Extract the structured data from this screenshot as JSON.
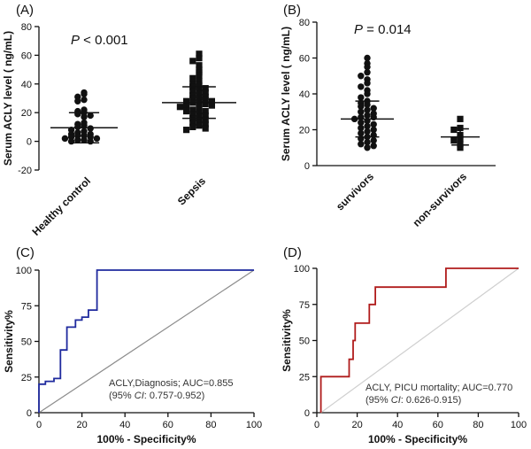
{
  "colors": {
    "axis": "#111111",
    "roc_a": "#1f2a9e",
    "roc_b": "#b01c1c",
    "diag_a": "#8c8c8c",
    "diag_b": "#cfcfcf"
  },
  "chart_data": [
    {
      "panel_label": "(A)",
      "type": "scatter",
      "subtype": "dot-plot",
      "ylabel": "Serum ACLY level ( ng/mL)",
      "ylim": [
        -20,
        80
      ],
      "yticks": [
        "-20",
        "0",
        "20",
        "40",
        "60",
        "80"
      ],
      "categories": [
        "Healthy control",
        "Sepsis"
      ],
      "annotation": {
        "p_symbol": "P",
        "p_text": " < 0.001"
      },
      "series": [
        {
          "name": "Healthy control",
          "marker": "circle",
          "mean": 9.5,
          "sd": 10.5,
          "values": [
            34,
            33,
            31,
            29,
            28,
            22,
            21,
            20,
            19,
            18,
            17,
            13,
            12,
            11,
            10,
            9,
            8,
            7,
            6,
            5,
            5,
            4,
            4,
            3,
            3,
            2,
            2,
            1,
            1,
            0,
            0
          ]
        },
        {
          "name": "Sepsis",
          "marker": "square",
          "mean": 27,
          "sd": 11,
          "values": [
            61,
            58,
            56,
            53,
            50,
            48,
            46,
            44,
            42,
            40,
            39,
            38,
            37,
            36,
            35,
            34,
            33,
            32,
            31,
            30,
            30,
            29,
            28,
            28,
            27,
            27,
            26,
            25,
            25,
            24,
            23,
            22,
            21,
            21,
            20,
            19,
            18,
            17,
            16,
            15,
            14,
            13,
            12,
            11,
            10,
            9,
            8
          ]
        }
      ]
    },
    {
      "panel_label": "(B)",
      "type": "scatter",
      "subtype": "dot-plot",
      "ylabel": "Serum ACLY level ( ng/mL)",
      "ylim": [
        0,
        80
      ],
      "yticks": [
        "0",
        "20",
        "40",
        "60",
        "80"
      ],
      "categories": [
        "survivors",
        "non-survivors"
      ],
      "annotation": {
        "p_symbol": "P",
        "p_text": " =  0.014"
      },
      "series": [
        {
          "name": "survivors",
          "marker": "circle",
          "mean": 26,
          "sd": 10,
          "values": [
            60,
            57,
            55,
            52,
            50,
            48,
            46,
            44,
            42,
            40,
            38,
            36,
            35,
            34,
            33,
            32,
            31,
            30,
            29,
            28,
            27,
            27,
            26,
            25,
            24,
            23,
            22,
            21,
            20,
            19,
            18,
            17,
            16,
            15,
            14,
            13,
            12,
            11,
            10
          ]
        },
        {
          "name": "non-survivors",
          "marker": "square",
          "mean": 16,
          "sd": 4.5,
          "values": [
            26,
            21,
            20,
            17,
            15,
            14,
            12,
            10
          ]
        }
      ]
    },
    {
      "panel_label": "(C)",
      "type": "line",
      "subtype": "roc",
      "xlabel": "100% - Specificity%",
      "ylabel": "Sensitivity%",
      "xlim": [
        0,
        100
      ],
      "ylim": [
        0,
        100
      ],
      "xticks": [
        "0",
        "20",
        "40",
        "60",
        "80",
        "100"
      ],
      "yticks": [
        "0",
        "25",
        "50",
        "75",
        "100"
      ],
      "color_key": "roc_a",
      "diag_key": "diag_a",
      "annotation": [
        "ACLY,Diagnosis; AUC=0.855",
        {
          "prefix": "(95% ",
          "ci": "CI",
          "suffix": ": 0.757-0.952)"
        }
      ],
      "roc_points": [
        [
          0,
          0
        ],
        [
          0,
          20
        ],
        [
          3,
          20
        ],
        [
          3,
          22
        ],
        [
          7,
          22
        ],
        [
          7,
          24
        ],
        [
          10,
          24
        ],
        [
          10,
          44
        ],
        [
          13,
          44
        ],
        [
          13,
          60
        ],
        [
          17,
          60
        ],
        [
          17,
          65
        ],
        [
          20,
          65
        ],
        [
          20,
          67
        ],
        [
          23,
          67
        ],
        [
          23,
          72
        ],
        [
          27,
          72
        ],
        [
          27,
          100
        ],
        [
          100,
          100
        ]
      ]
    },
    {
      "panel_label": "(D)",
      "type": "line",
      "subtype": "roc",
      "xlabel": "100% - Specificity%",
      "ylabel": "Sensitivity%",
      "xlim": [
        0,
        100
      ],
      "ylim": [
        0,
        100
      ],
      "xticks": [
        "0",
        "20",
        "40",
        "60",
        "80",
        "100"
      ],
      "yticks": [
        "0",
        "25",
        "50",
        "75",
        "100"
      ],
      "color_key": "roc_b",
      "diag_key": "diag_b",
      "annotation": [
        "ACLY, PICU mortality; AUC=0.770",
        {
          "prefix": "(95% ",
          "ci": "CI",
          "suffix": ": 0.626-0.915)"
        }
      ],
      "roc_points": [
        [
          2,
          0
        ],
        [
          2,
          25
        ],
        [
          16,
          25
        ],
        [
          16,
          37
        ],
        [
          18,
          37
        ],
        [
          18,
          50
        ],
        [
          19,
          50
        ],
        [
          19,
          62
        ],
        [
          26,
          62
        ],
        [
          26,
          75
        ],
        [
          29,
          75
        ],
        [
          29,
          87
        ],
        [
          64,
          87
        ],
        [
          64,
          100
        ],
        [
          100,
          100
        ]
      ]
    }
  ]
}
